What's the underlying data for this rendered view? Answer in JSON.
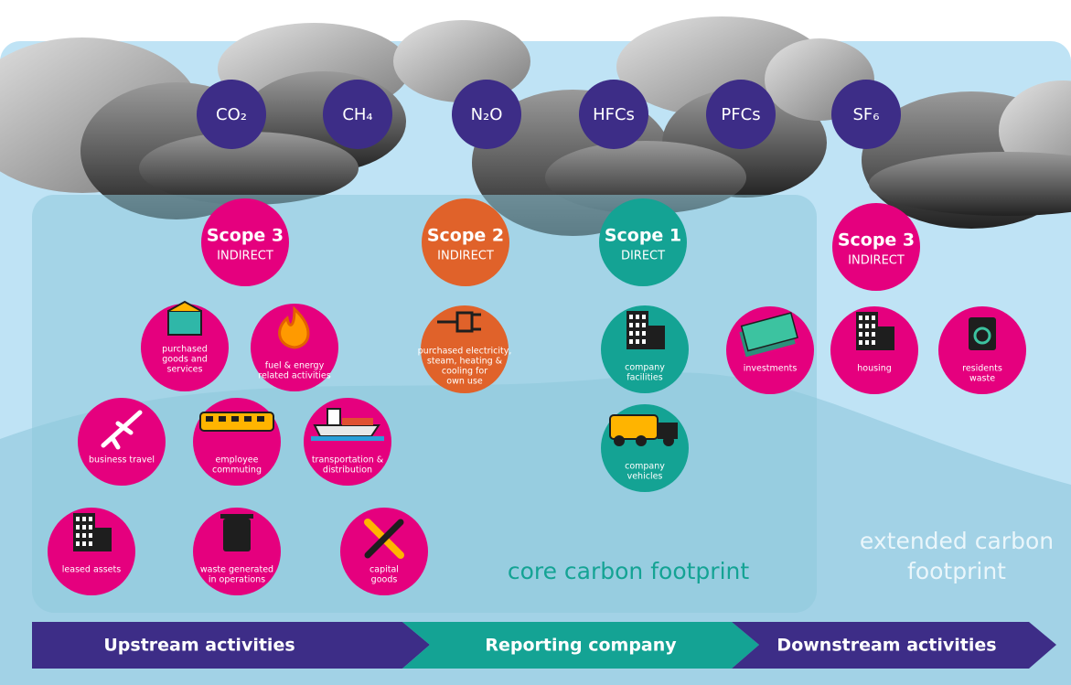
{
  "gases": [
    "CO₂",
    "CH₄",
    "N₂O",
    "HFCs",
    "PFCs",
    "SF₆"
  ],
  "scopes": [
    {
      "title": "Scope 3",
      "subtitle": "INDIRECT"
    },
    {
      "title": "Scope 2",
      "subtitle": "INDIRECT"
    },
    {
      "title": "Scope 1",
      "subtitle": "DIRECT"
    },
    {
      "title": "Scope 3",
      "subtitle": "INDIRECT"
    }
  ],
  "activities": [
    {
      "lines": [
        "purchased",
        "goods and",
        "services"
      ]
    },
    {
      "lines": [
        "fuel & energy",
        "related activities"
      ]
    },
    {
      "lines": [
        "purchased electricity,",
        "steam, heating &",
        "cooling for",
        "own use"
      ]
    },
    {
      "lines": [
        "company",
        "facilities"
      ]
    },
    {
      "lines": [
        "investments"
      ]
    },
    {
      "lines": [
        "housing"
      ]
    },
    {
      "lines": [
        "residents",
        "waste"
      ]
    },
    {
      "lines": [
        "business travel"
      ]
    },
    {
      "lines": [
        "employee",
        "commuting"
      ]
    },
    {
      "lines": [
        "transportation &",
        "distribution"
      ]
    },
    {
      "lines": [
        "company",
        "vehicles"
      ]
    },
    {
      "lines": [
        "leased assets"
      ]
    },
    {
      "lines": [
        "waste generated",
        "in operations"
      ]
    },
    {
      "lines": [
        "capital",
        "goods"
      ]
    }
  ],
  "labels": {
    "core": "core carbon footprint",
    "extended": [
      "extended carbon",
      "footprint"
    ]
  },
  "stages": [
    "Upstream activities",
    "Reporting company",
    "Downstream activities"
  ]
}
